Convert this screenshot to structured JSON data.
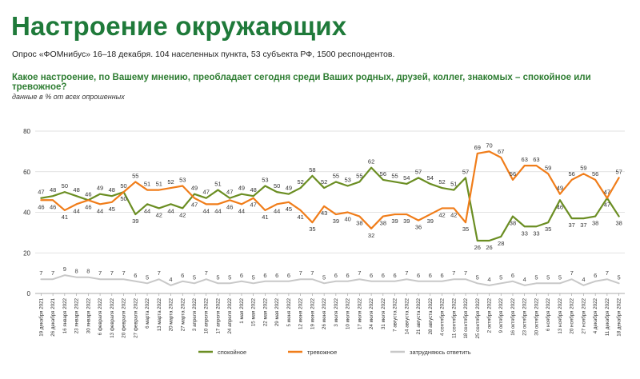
{
  "title": "Настроение окружающих",
  "subtitle": "Опрос «ФОМнибус» 16–18 декабря. 104 населенных пункта, 53 субъекта РФ, 1500 респондентов.",
  "question": "Какое настроение, по Вашему мнению, преобладает сегодня среди Ваших родных, друзей, коллег, знакомых – спокойное или тревожное?",
  "note": "данные в % от всех опрошенных",
  "chart_data": {
    "type": "line",
    "ylim": [
      0,
      80
    ],
    "yticks": [
      0,
      20,
      40,
      60,
      80
    ],
    "grid": true,
    "legend": "bottom",
    "x": [
      "19 декабря 2021",
      "26 декабря 2021",
      "16 января 2022",
      "23 января 2022",
      "30 января 2022",
      "6 февраля 2022",
      "13 февраля 2022",
      "20 февраля 2022",
      "27 февраля 2022",
      "6 марта 2022",
      "13 марта 2022",
      "20 марта 2022",
      "27 марта 2022",
      "3 апреля 2022",
      "10 апреля 2022",
      "17 апреля 2022",
      "24 апреля 2022",
      "1 мая 2022",
      "15 мая 2022",
      "22 мая 2022",
      "29 мая 2022",
      "5 июня 2022",
      "12 июня 2022",
      "19 июня 2022",
      "26 июня 2022",
      "3 июля 2022",
      "10 июля 2022",
      "17 июля 2022",
      "24 июля 2022",
      "31 июля 2022",
      "7 августа 2022",
      "14 августа 2022",
      "21 августа 2022",
      "28 августа 2022",
      "4 сентября 2022",
      "11 сентября 2022",
      "18 сентября 2022",
      "25 сентября 2022",
      "2 октября 2022",
      "9 октября 2022",
      "16 октября 2022",
      "23 октября 2022",
      "30 октября 2022",
      "6 ноября 2022",
      "13 ноября 2022",
      "20 ноября 2022",
      "27 ноября 2022",
      "4 декабря 2022",
      "11 декабря 2022",
      "18 декабря 2022"
    ],
    "series": [
      {
        "name": "спокойное",
        "color": "#6b8e23",
        "values": [
          47,
          48,
          50,
          48,
          46,
          49,
          48,
          50,
          39,
          44,
          42,
          44,
          42,
          49,
          47,
          51,
          47,
          49,
          48,
          53,
          50,
          49,
          52,
          58,
          52,
          55,
          53,
          55,
          62,
          56,
          55,
          54,
          57,
          54,
          52,
          51,
          57,
          26,
          26,
          28,
          38,
          33,
          33,
          35,
          46,
          37,
          37,
          38,
          47,
          38
        ]
      },
      {
        "name": "тревожное",
        "color": "#f07d1a",
        "values": [
          46,
          46,
          41,
          44,
          46,
          44,
          45,
          50,
          55,
          51,
          51,
          52,
          53,
          47,
          44,
          44,
          46,
          44,
          47,
          41,
          44,
          45,
          41,
          35,
          43,
          39,
          40,
          38,
          32,
          38,
          39,
          39,
          36,
          39,
          42,
          42,
          35,
          69,
          70,
          67,
          56,
          63,
          63,
          59,
          49,
          56,
          59,
          56,
          47,
          57
        ]
      },
      {
        "name": "затрудняюсь ответить",
        "color": "#c8c8c8",
        "values": [
          7,
          7,
          9,
          8,
          8,
          7,
          7,
          7,
          6,
          5,
          7,
          4,
          6,
          5,
          7,
          5,
          5,
          6,
          5,
          6,
          6,
          6,
          7,
          7,
          5,
          6,
          6,
          7,
          6,
          6,
          6,
          7,
          6,
          6,
          6,
          7,
          7,
          5,
          4,
          5,
          6,
          4,
          5,
          5,
          5,
          7,
          4,
          6,
          7,
          5
        ]
      }
    ]
  }
}
